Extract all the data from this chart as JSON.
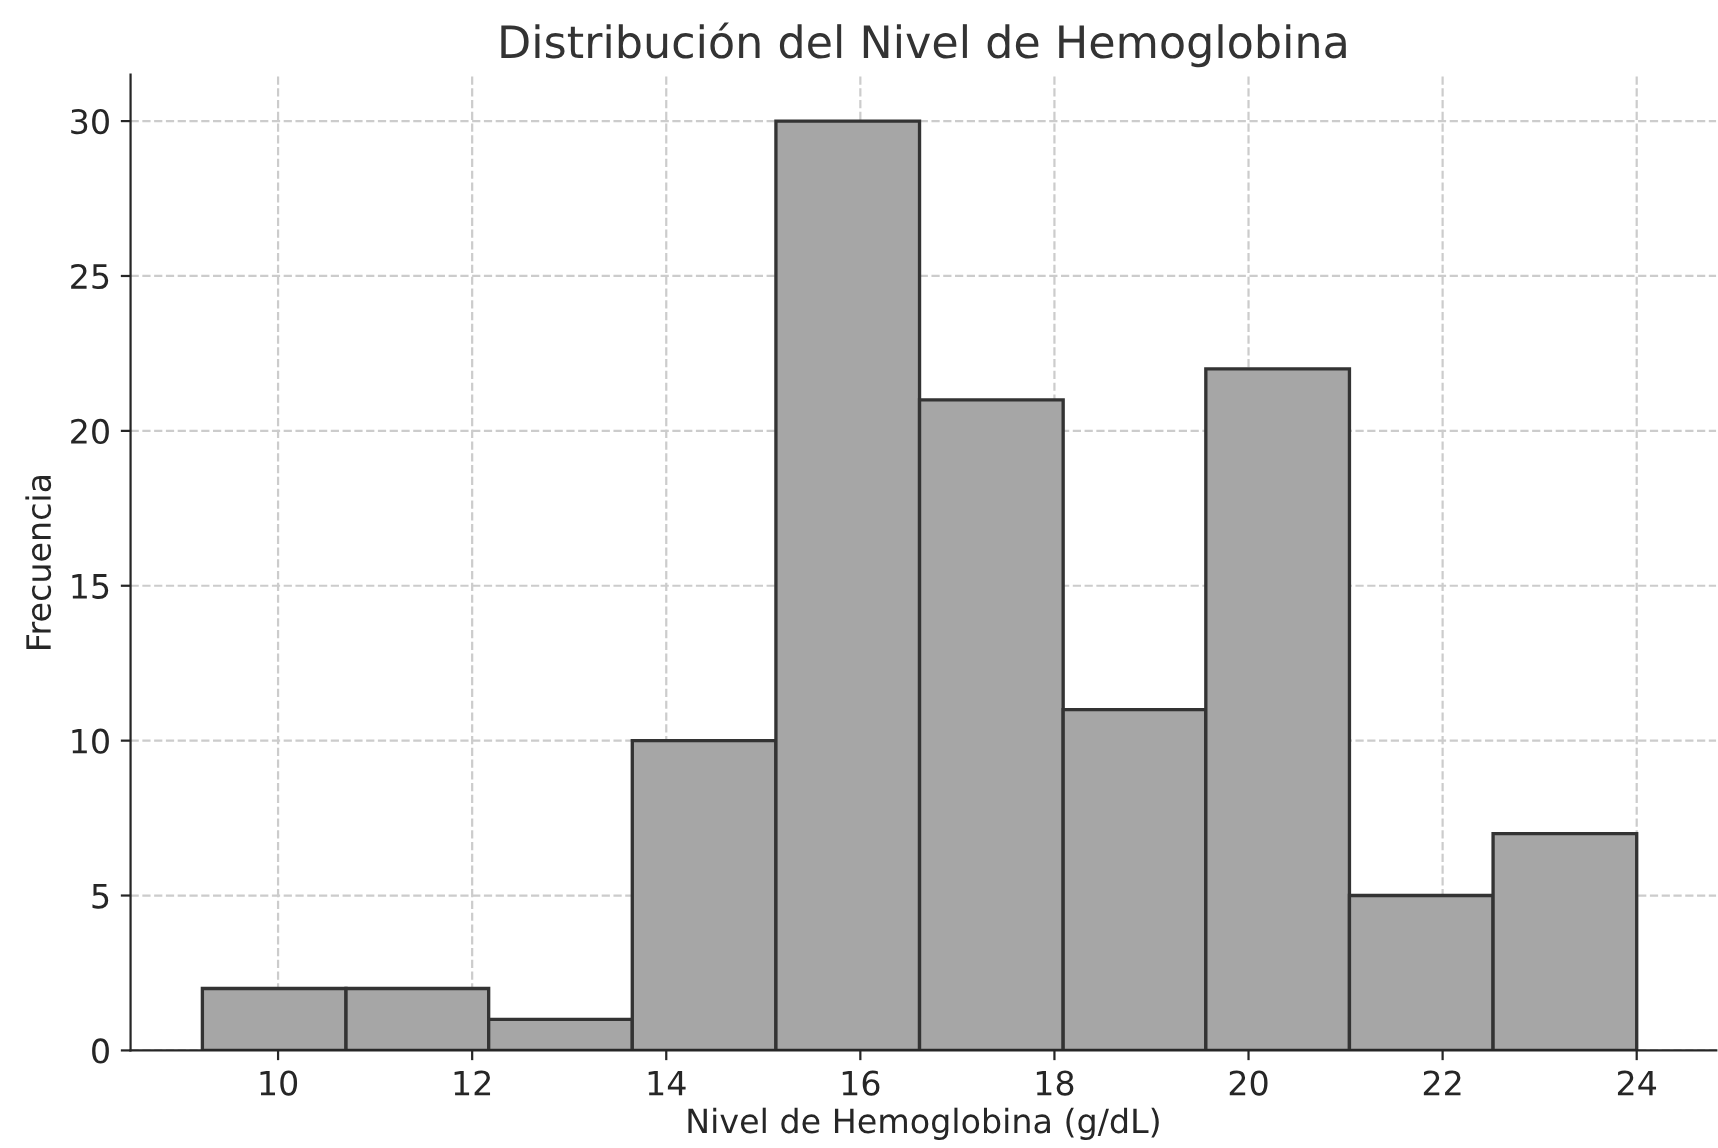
{
  "chart_data": {
    "type": "histogram",
    "title": "Distribución del Nivel de Hemoglobina",
    "xlabel": "Nivel de Hemoglobina (g/dL)",
    "ylabel": "Frecuencia",
    "bins": [
      9.22,
      10.7,
      12.17,
      13.65,
      15.13,
      16.61,
      18.09,
      19.56,
      21.04,
      22.52,
      24.0
    ],
    "values": [
      2,
      2,
      1,
      10,
      30,
      21,
      11,
      22,
      5,
      7
    ],
    "color": "#a6a6a6",
    "xlim": [
      8.48,
      24.82
    ],
    "xticks": [
      10,
      12,
      14,
      16,
      18,
      20,
      22,
      24
    ],
    "ylim": [
      0,
      31.5
    ],
    "yticks": [
      0,
      5,
      10,
      15,
      20,
      25,
      30
    ],
    "grid": true
  }
}
